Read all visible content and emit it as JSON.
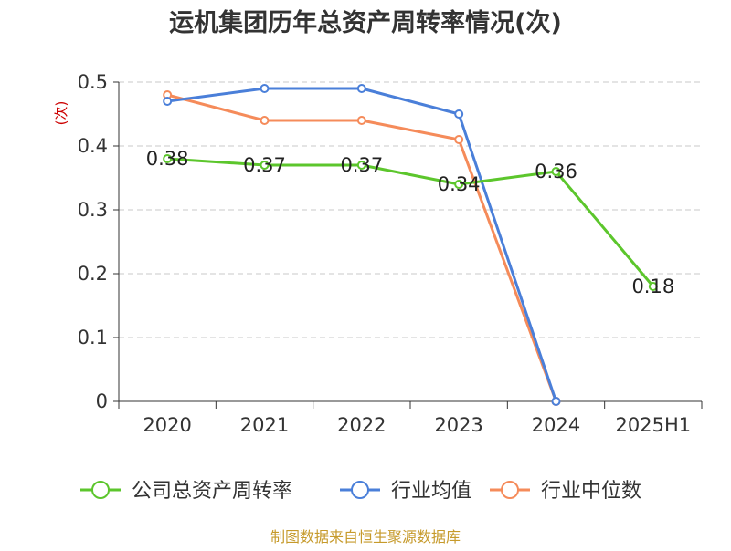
{
  "chart_data": {
    "type": "line",
    "title": "运机集团历年总资产周转率情况(次)",
    "ylabel": "(次)",
    "xlabel": "",
    "categories": [
      "2020",
      "2021",
      "2022",
      "2023",
      "2024",
      "2025H1"
    ],
    "ylim": [
      0,
      0.5
    ],
    "yticks": [
      0,
      0.1,
      0.2,
      0.3,
      0.4,
      0.5
    ],
    "ytick_labels": [
      "0",
      "0.1",
      "0.2",
      "0.3",
      "0.4",
      "0.5"
    ],
    "grid": true,
    "legend_position": "bottom",
    "series": [
      {
        "name": "公司总资产周转率",
        "color": "#5cc62c",
        "values": [
          0.38,
          0.37,
          0.37,
          0.34,
          0.36,
          0.18
        ],
        "labels": [
          "0.38",
          "0.37",
          "0.37",
          "0.34",
          "0.36",
          "0.18"
        ]
      },
      {
        "name": "行业均值",
        "color": "#4a7fd9",
        "values": [
          0.47,
          0.49,
          0.49,
          0.45,
          0.0,
          null
        ]
      },
      {
        "name": "行业中位数",
        "color": "#f58b5a",
        "values": [
          0.48,
          0.44,
          0.44,
          0.41,
          0.0,
          null
        ]
      }
    ]
  },
  "source_text": "制图数据来自恒生聚源数据库"
}
